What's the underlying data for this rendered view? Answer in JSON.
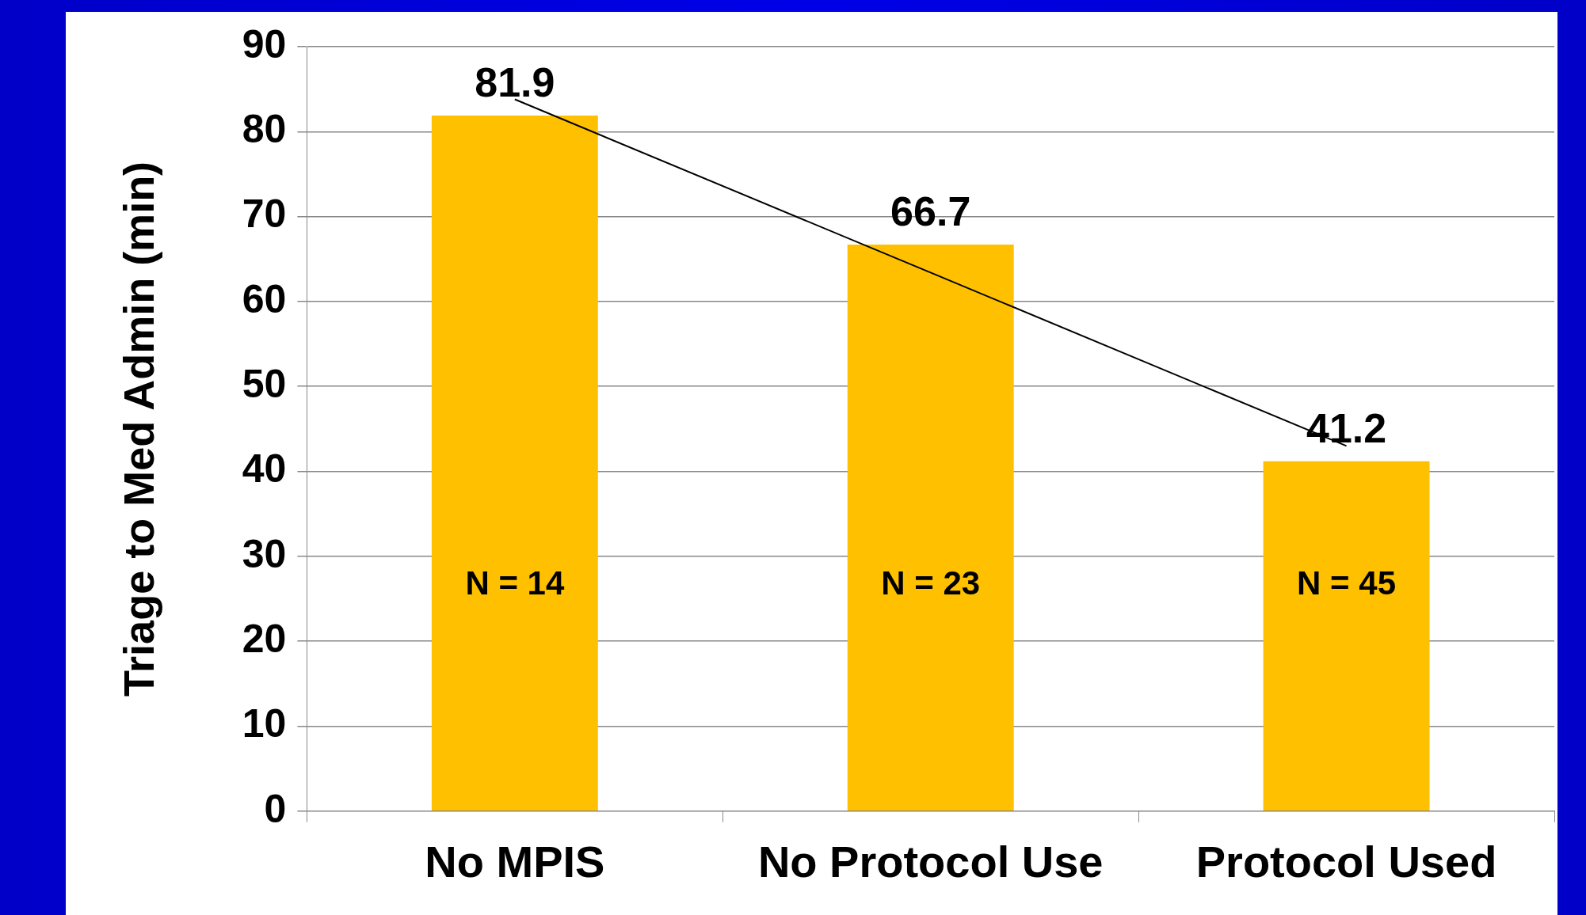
{
  "chart_data": {
    "type": "bar",
    "ylabel": "Triage to Med Admin (min)",
    "categories": [
      "No MPIS",
      "No Protocol Use",
      "Protocol Used"
    ],
    "series": [
      {
        "color": "#ffc000",
        "values": [
          81.9,
          66.7,
          41.2
        ],
        "value_labels": [
          "81.9",
          "66.7",
          "41.2"
        ]
      },
      {
        "type": "line",
        "color": "#000000",
        "marker": "none",
        "values": [
          83.8,
          63.4,
          43.0
        ]
      }
    ],
    "ylim": [
      0,
      90
    ],
    "yticks": [
      0,
      10,
      20,
      30,
      40,
      50,
      60,
      70,
      80,
      90
    ],
    "grid": "y",
    "legend": false,
    "annotations": [
      "N = 14",
      "N = 23",
      "N = 45"
    ]
  }
}
